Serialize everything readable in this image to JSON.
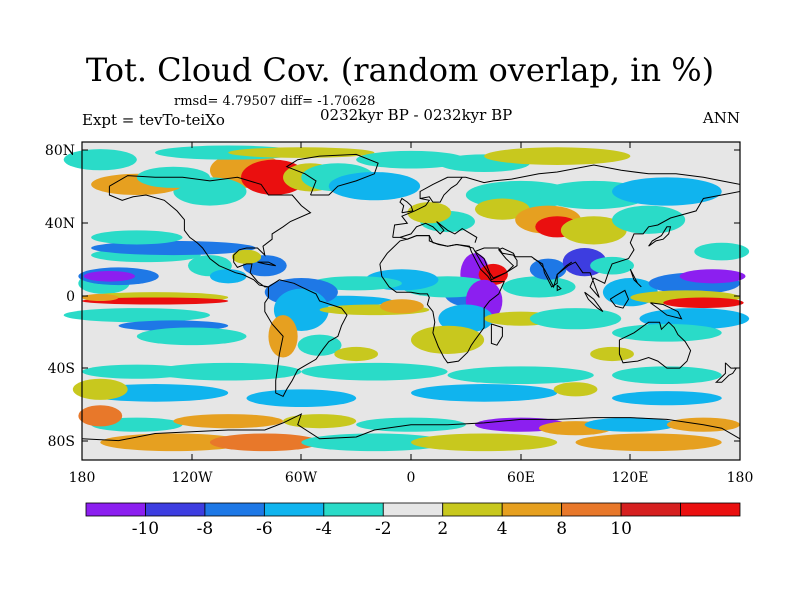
{
  "title": "Tot. Cloud Cov. (random overlap, in %)",
  "stats": "rmsd= 4.79507 diff= -1.70628",
  "expt": "Expt = tevTo-teiXo",
  "period": "0232kyr BP - 0232kyr BP",
  "season": "ANN",
  "lat_ticks": [
    "80N",
    "40N",
    "0",
    "40S",
    "80S"
  ],
  "lon_ticks": [
    "180",
    "120W",
    "60W",
    "0",
    "60E",
    "120E",
    "180"
  ],
  "colorbar": {
    "colors": [
      "#8c1ff0",
      "#3d3de0",
      "#1e78e6",
      "#10b4ee",
      "#2adbc8",
      "#e6e6e6",
      "#c8c81e",
      "#e6a020",
      "#e8782a",
      "#d62020",
      "#ea0f0f"
    ],
    "labels": [
      "-10",
      "-8",
      "-6",
      "-4",
      "-2",
      "2",
      "4",
      "8",
      "10"
    ]
  },
  "field_colors": {
    "neutral": "#e6e6e6",
    "cyan": "#2adbc8",
    "lightblue": "#10b4ee",
    "blue": "#1e78e6",
    "darkblue": "#3d3de0",
    "purple": "#8c1ff0",
    "yellow": "#c8c81e",
    "orange": "#e6a020",
    "darkorange": "#e8782a",
    "red": "#ea0f0f"
  }
}
